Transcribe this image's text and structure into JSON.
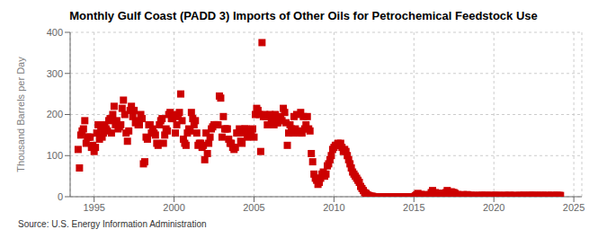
{
  "chart_data": {
    "type": "scatter",
    "title": "Monthly Gulf Coast (PADD 3) Imports of Other Oils for Petrochemical Feedstock Use",
    "ylabel": "Thousand Barrels per Day",
    "annotations": [
      "Source: U.S. Energy Information Administration"
    ],
    "color": "#cc0000",
    "marker": "square",
    "grid": true,
    "xlim": [
      1993.5,
      2025.5
    ],
    "ylim": [
      0,
      400
    ],
    "xticks": [
      1995,
      2000,
      2005,
      2010,
      2015,
      2020,
      2025
    ],
    "yticks": [
      0,
      100,
      200,
      300,
      400
    ],
    "x": [
      1994.0,
      1994.083,
      1994.167,
      1994.25,
      1994.333,
      1994.417,
      1994.5,
      1994.583,
      1994.667,
      1994.75,
      1994.833,
      1994.917,
      1995.0,
      1995.083,
      1995.167,
      1995.25,
      1995.333,
      1995.417,
      1995.5,
      1995.583,
      1995.667,
      1995.75,
      1995.833,
      1995.917,
      1996.0,
      1996.083,
      1996.167,
      1996.25,
      1996.333,
      1996.417,
      1996.5,
      1996.583,
      1996.667,
      1996.75,
      1996.833,
      1996.917,
      1997.0,
      1997.083,
      1997.167,
      1997.25,
      1997.333,
      1997.417,
      1997.5,
      1997.583,
      1997.667,
      1997.75,
      1997.833,
      1997.917,
      1998.0,
      1998.083,
      1998.167,
      1998.25,
      1998.333,
      1998.417,
      1998.5,
      1998.583,
      1998.667,
      1998.75,
      1998.833,
      1998.917,
      1999.0,
      1999.083,
      1999.167,
      1999.25,
      1999.333,
      1999.417,
      1999.5,
      1999.583,
      1999.667,
      1999.75,
      1999.833,
      1999.917,
      2000.0,
      2000.083,
      2000.167,
      2000.25,
      2000.333,
      2000.417,
      2000.5,
      2000.583,
      2000.667,
      2000.75,
      2000.833,
      2000.917,
      2001.0,
      2001.083,
      2001.167,
      2001.25,
      2001.333,
      2001.417,
      2001.5,
      2001.583,
      2001.667,
      2001.75,
      2001.833,
      2001.917,
      2002.0,
      2002.083,
      2002.167,
      2002.25,
      2002.333,
      2002.417,
      2002.5,
      2002.583,
      2002.667,
      2002.75,
      2002.833,
      2002.917,
      2003.0,
      2003.083,
      2003.167,
      2003.25,
      2003.333,
      2003.417,
      2003.5,
      2003.583,
      2003.667,
      2003.75,
      2003.833,
      2003.917,
      2004.0,
      2004.083,
      2004.167,
      2004.25,
      2004.333,
      2004.417,
      2004.5,
      2004.583,
      2004.667,
      2004.75,
      2004.833,
      2004.917,
      2005.0,
      2005.083,
      2005.167,
      2005.25,
      2005.333,
      2005.417,
      2005.5,
      2005.583,
      2005.667,
      2005.75,
      2005.833,
      2005.917,
      2006.0,
      2006.083,
      2006.167,
      2006.25,
      2006.333,
      2006.417,
      2006.5,
      2006.583,
      2006.667,
      2006.75,
      2006.833,
      2006.917,
      2007.0,
      2007.083,
      2007.167,
      2007.25,
      2007.333,
      2007.417,
      2007.5,
      2007.583,
      2007.667,
      2007.75,
      2007.833,
      2007.917,
      2008.0,
      2008.083,
      2008.167,
      2008.25,
      2008.333,
      2008.417,
      2008.5,
      2008.583,
      2008.667,
      2008.75,
      2008.833,
      2008.917,
      2009.0,
      2009.083,
      2009.167,
      2009.25,
      2009.333,
      2009.417,
      2009.5,
      2009.583,
      2009.667,
      2009.75,
      2009.833,
      2009.917,
      2010.0,
      2010.083,
      2010.167,
      2010.25,
      2010.333,
      2010.417,
      2010.5,
      2010.583,
      2010.667,
      2010.75,
      2010.833,
      2010.917,
      2011.0,
      2011.083,
      2011.167,
      2011.25,
      2011.333,
      2011.417,
      2011.5,
      2011.583,
      2011.667,
      2011.75,
      2011.833,
      2011.917,
      2012.0,
      2012.083,
      2012.167,
      2012.25,
      2012.333,
      2012.417,
      2012.5,
      2012.583,
      2012.667,
      2012.75,
      2012.833,
      2012.917,
      2013.0,
      2013.083,
      2013.167,
      2013.25,
      2013.333,
      2013.417,
      2013.5,
      2013.583,
      2013.667,
      2013.75,
      2013.833,
      2013.917,
      2014.0,
      2014.083,
      2014.167,
      2014.25,
      2014.333,
      2014.417,
      2014.5,
      2014.583,
      2014.667,
      2014.75,
      2014.833,
      2014.917,
      2015.0,
      2015.083,
      2015.167,
      2015.25,
      2015.333,
      2015.417,
      2015.5,
      2015.583,
      2015.667,
      2015.75,
      2015.833,
      2015.917,
      2016.0,
      2016.083,
      2016.167,
      2016.25,
      2016.333,
      2016.417,
      2016.5,
      2016.583,
      2016.667,
      2016.75,
      2016.833,
      2016.917,
      2017.0,
      2017.083,
      2017.167,
      2017.25,
      2017.333,
      2017.417,
      2017.5,
      2017.583,
      2017.667,
      2017.75,
      2017.833,
      2017.917,
      2018.0,
      2018.083,
      2018.167,
      2018.25,
      2018.333,
      2018.417,
      2018.5,
      2018.583,
      2018.667,
      2018.75,
      2018.833,
      2018.917,
      2019.0,
      2019.083,
      2019.167,
      2019.25,
      2019.333,
      2019.417,
      2019.5,
      2019.583,
      2019.667,
      2019.75,
      2019.833,
      2019.917,
      2020.0,
      2020.083,
      2020.167,
      2020.25,
      2020.333,
      2020.417,
      2020.5,
      2020.583,
      2020.667,
      2020.75,
      2020.833,
      2020.917,
      2021.0,
      2021.083,
      2021.167,
      2021.25,
      2021.333,
      2021.417,
      2021.5,
      2021.583,
      2021.667,
      2021.75,
      2021.833,
      2021.917,
      2022.0,
      2022.083,
      2022.167,
      2022.25,
      2022.333,
      2022.417,
      2022.5,
      2022.583,
      2022.667,
      2022.75,
      2022.833,
      2022.917,
      2023.0,
      2023.083,
      2023.167,
      2023.25,
      2023.333,
      2023.417,
      2023.5,
      2023.583,
      2023.667,
      2023.75,
      2023.833,
      2023.917,
      2024.0,
      2024.083,
      2024.167
    ],
    "values": [
      115,
      70,
      150,
      160,
      165,
      185,
      130,
      145,
      145,
      145,
      120,
      125,
      110,
      120,
      155,
      175,
      140,
      170,
      145,
      155,
      175,
      165,
      160,
      185,
      190,
      155,
      200,
      220,
      175,
      185,
      165,
      170,
      175,
      215,
      235,
      200,
      155,
      135,
      160,
      210,
      220,
      195,
      210,
      180,
      185,
      175,
      175,
      200,
      190,
      80,
      85,
      145,
      140,
      175,
      175,
      155,
      165,
      155,
      150,
      130,
      125,
      175,
      185,
      190,
      130,
      150,
      165,
      160,
      200,
      205,
      190,
      190,
      200,
      155,
      175,
      195,
      205,
      250,
      185,
      140,
      130,
      125,
      155,
      165,
      160,
      205,
      190,
      175,
      185,
      155,
      125,
      130,
      130,
      120,
      125,
      90,
      155,
      105,
      130,
      145,
      165,
      170,
      175,
      175,
      175,
      175,
      245,
      240,
      145,
      195,
      165,
      165,
      165,
      140,
      130,
      130,
      120,
      115,
      120,
      155,
      155,
      165,
      135,
      130,
      155,
      165,
      165,
      145,
      160,
      160,
      155,
      165,
      145,
      200,
      215,
      210,
      200,
      110,
      375,
      195,
      200,
      195,
      175,
      195,
      200,
      185,
      195,
      175,
      200,
      180,
      180,
      190,
      195,
      185,
      215,
      205,
      180,
      125,
      155,
      175,
      165,
      155,
      195,
      165,
      200,
      160,
      155,
      205,
      155,
      195,
      165,
      175,
      195,
      165,
      160,
      105,
      85,
      55,
      45,
      40,
      30,
      35,
      45,
      55,
      60,
      50,
      55,
      75,
      80,
      90,
      100,
      115,
      120,
      125,
      125,
      130,
      125,
      130,
      120,
      110,
      115,
      110,
      100,
      90,
      80,
      70,
      60,
      55,
      50,
      45,
      40,
      35,
      25,
      20,
      15,
      10,
      8,
      5,
      3,
      2,
      1,
      1,
      0,
      0,
      0,
      0,
      0,
      0,
      0,
      0,
      0,
      0,
      0,
      0,
      0,
      0,
      0,
      0,
      0,
      0,
      0,
      0,
      0,
      0,
      0,
      0,
      0,
      0,
      0,
      0,
      0,
      0,
      0,
      2,
      5,
      8,
      5,
      5,
      5,
      3,
      2,
      5,
      3,
      2,
      5,
      10,
      15,
      8,
      10,
      8,
      8,
      8,
      8,
      5,
      3,
      5,
      10,
      15,
      8,
      10,
      12,
      10,
      10,
      8,
      5,
      5,
      3,
      3,
      3,
      5,
      3,
      3,
      5,
      3,
      3,
      3,
      3,
      3,
      0,
      3,
      0,
      3,
      3,
      3,
      3,
      3,
      3,
      3,
      0,
      3,
      3,
      3,
      0,
      3,
      3,
      3,
      3,
      0,
      0,
      3,
      3,
      3,
      0,
      3,
      3,
      3,
      0,
      3,
      3,
      0,
      0,
      3,
      3,
      3,
      3,
      3,
      0,
      3,
      3,
      3,
      3,
      3,
      3,
      3,
      3,
      0,
      3,
      3,
      3,
      3,
      0,
      3,
      3,
      3,
      0,
      3,
      3,
      3,
      0,
      3,
      3,
      3,
      3
    ]
  }
}
